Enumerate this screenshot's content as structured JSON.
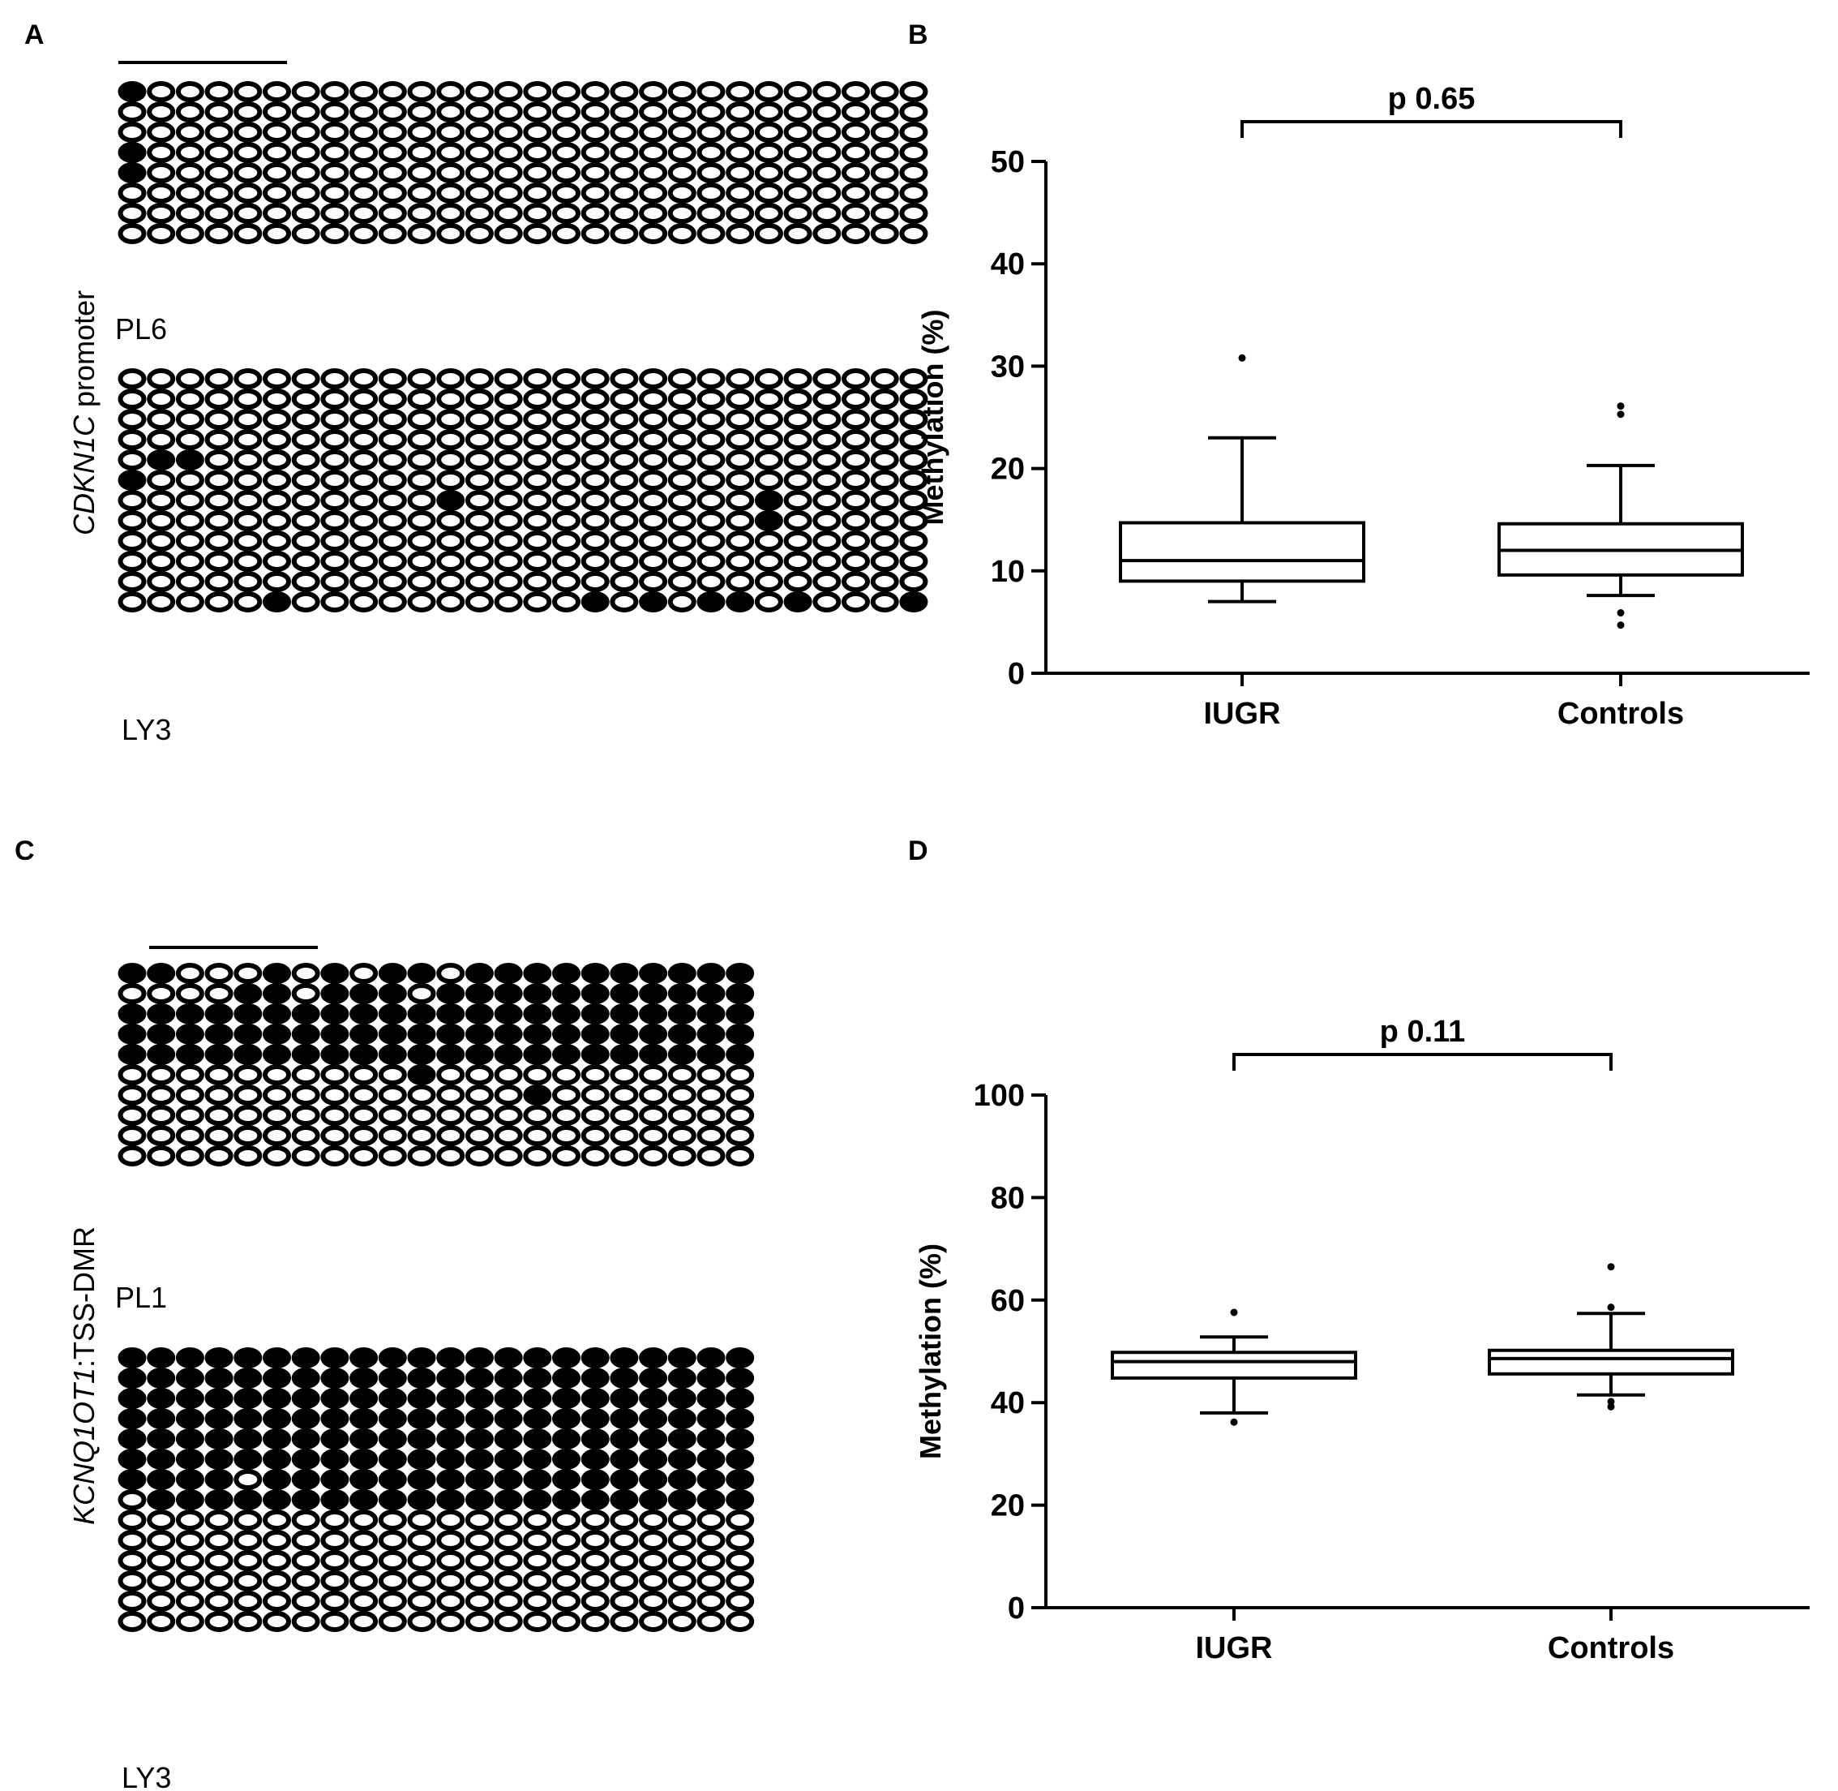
{
  "panels": {
    "a": "A",
    "b": "B",
    "c": "C",
    "d": "D"
  },
  "lollipop": {
    "a": {
      "gene_italic": "CDKN1C",
      "gene_suffix": " promoter",
      "samples": [
        {
          "name": "PL6",
          "cols": 28,
          "rows": 8,
          "filled": [
            [
              0,
              0
            ],
            [
              3,
              0
            ],
            [
              4,
              0
            ]
          ]
        },
        {
          "name": "LY3",
          "cols": 28,
          "rows": 12,
          "filled": [
            [
              4,
              1
            ],
            [
              4,
              2
            ],
            [
              5,
              0
            ],
            [
              6,
              11
            ],
            [
              6,
              22
            ],
            [
              7,
              22
            ],
            [
              11,
              5
            ],
            [
              11,
              16
            ],
            [
              11,
              18
            ],
            [
              11,
              20
            ],
            [
              11,
              21
            ],
            [
              11,
              23
            ],
            [
              11,
              27
            ]
          ]
        }
      ]
    },
    "c": {
      "gene_italic": "KCNQ1OT1",
      "gene_suffix": ":TSS-DMR",
      "samples": [
        {
          "name": "PL1",
          "cols": 22,
          "rows": 10,
          "pattern": "pl1"
        },
        {
          "name": "LY3",
          "cols": 22,
          "rows": 14,
          "pattern": "ly3c"
        }
      ]
    }
  },
  "chart_data": [
    {
      "panel": "B",
      "type": "box",
      "ylabel": "Methylation (%)",
      "xlabel": "",
      "title": "",
      "ylim": [
        0,
        50
      ],
      "yticks": [
        0,
        10,
        20,
        30,
        40,
        50
      ],
      "categories": [
        "IUGR",
        "Controls"
      ],
      "boxes": [
        {
          "min": 7,
          "q1": 9,
          "median": 11,
          "q3": 14.7,
          "max": 23,
          "outliers": [
            30.8
          ]
        },
        {
          "min": 7.6,
          "q1": 9.6,
          "median": 12,
          "q3": 14.6,
          "max": 20.3,
          "outliers": [
            25.3,
            26.1,
            5.9,
            4.7
          ]
        }
      ],
      "annotation": "p 0.65"
    },
    {
      "panel": "D",
      "type": "box",
      "ylabel": "Methylation (%)",
      "xlabel": "",
      "title": "",
      "ylim": [
        0,
        100
      ],
      "yticks": [
        0,
        20,
        40,
        60,
        80,
        100
      ],
      "categories": [
        "IUGR",
        "Controls"
      ],
      "boxes": [
        {
          "min": 38,
          "q1": 44.8,
          "median": 48,
          "q3": 49.8,
          "max": 52.8,
          "outliers": [
            57.6,
            36.2
          ]
        },
        {
          "min": 41.5,
          "q1": 45.6,
          "median": 48.6,
          "q3": 50.2,
          "max": 57.4,
          "outliers": [
            66.5,
            58.6,
            40.2,
            39.2
          ]
        }
      ],
      "annotation": "p 0.11"
    }
  ]
}
